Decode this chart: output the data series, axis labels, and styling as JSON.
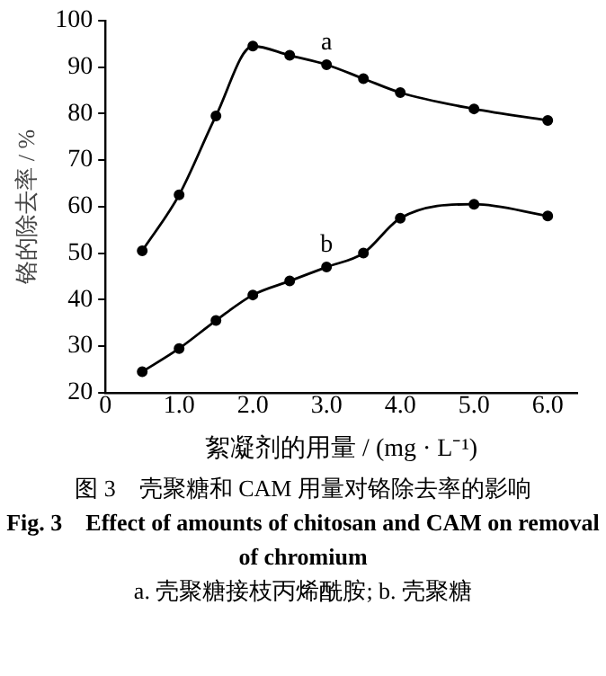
{
  "chart_data": {
    "type": "line",
    "title": "图 3　壳聚糖和 CAM 用量对铬除去率的影响",
    "subtitle": "Fig. 3　Effect of amounts of chitosan and CAM on removal of chromium",
    "annotations": [
      "a. 壳聚糖接枝丙烯酰胺; b. 壳聚糖"
    ],
    "xlabel": "絮凝剂的用量 / (mg · L⁻¹)",
    "ylabel": "铬的除去率 / %",
    "x": [
      0.5,
      1.0,
      1.5,
      2.0,
      2.5,
      3.0,
      3.5,
      4.0,
      5.0,
      6.0
    ],
    "series": [
      {
        "name": "a",
        "color": "#000000",
        "values": [
          50.5,
          62.5,
          79.5,
          94.5,
          92.5,
          90.5,
          87.5,
          84.5,
          81,
          78.5
        ]
      },
      {
        "name": "b",
        "color": "#000000",
        "values": [
          24.5,
          29.5,
          35.5,
          41,
          44,
          47,
          50,
          57.5,
          60.5,
          58
        ]
      }
    ],
    "xlim": [
      0,
      6.4
    ],
    "xticks": [
      {
        "value": 0,
        "label": "0"
      },
      {
        "value": 1,
        "label": "1.0"
      },
      {
        "value": 2,
        "label": "2.0"
      },
      {
        "value": 3,
        "label": "3.0"
      },
      {
        "value": 4,
        "label": "4.0"
      },
      {
        "value": 5,
        "label": "5.0"
      },
      {
        "value": 6,
        "label": "6.0"
      }
    ],
    "ylim": [
      20,
      100
    ],
    "yticks": [
      20,
      30,
      40,
      50,
      60,
      70,
      80,
      90,
      100
    ],
    "grid": false,
    "legend": false,
    "marker": "circle",
    "line_style": "solid"
  }
}
